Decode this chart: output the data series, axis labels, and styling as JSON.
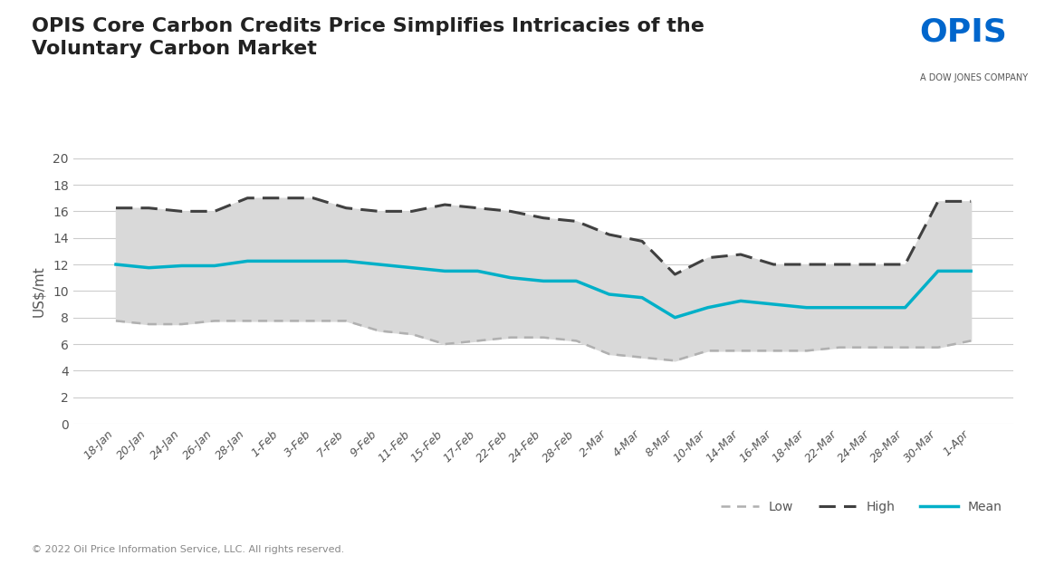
{
  "title": "OPIS Core Carbon Credits Price Simplifies Intricacies of the\nVoluntary Carbon Market",
  "ylabel": "US$/mt",
  "copyright": "© 2022 Oil Price Information Service, LLC. All rights reserved.",
  "xlabels": [
    "18-Jan",
    "20-Jan",
    "24-Jan",
    "26-Jan",
    "28-Jan",
    "1-Feb",
    "3-Feb",
    "7-Feb",
    "9-Feb",
    "11-Feb",
    "15-Feb",
    "17-Feb",
    "22-Feb",
    "24-Feb",
    "28-Feb",
    "2-Mar",
    "4-Mar",
    "8-Mar",
    "10-Mar",
    "14-Mar",
    "16-Mar",
    "18-Mar",
    "22-Mar",
    "24-Mar",
    "28-Mar",
    "30-Mar",
    "1-Apr"
  ],
  "low": [
    7.75,
    7.5,
    7.5,
    7.75,
    7.75,
    7.75,
    7.75,
    7.75,
    7.0,
    6.75,
    6.0,
    6.25,
    6.5,
    6.5,
    6.25,
    5.25,
    5.0,
    4.75,
    5.5,
    5.5,
    5.5,
    5.5,
    5.75,
    5.75,
    5.75,
    5.75,
    6.25
  ],
  "high": [
    16.25,
    16.25,
    16.0,
    16.0,
    17.0,
    17.0,
    17.0,
    16.25,
    16.0,
    16.0,
    16.5,
    16.25,
    16.0,
    15.5,
    15.25,
    14.25,
    13.75,
    11.25,
    12.5,
    12.75,
    12.0,
    12.0,
    12.0,
    12.0,
    12.0,
    16.75,
    16.75
  ],
  "mean": [
    12.0,
    11.75,
    11.9,
    11.9,
    12.25,
    12.25,
    12.25,
    12.25,
    12.0,
    11.75,
    11.5,
    11.5,
    11.0,
    10.75,
    10.75,
    9.75,
    9.5,
    8.0,
    8.75,
    9.25,
    9.0,
    8.75,
    8.75,
    8.75,
    8.75,
    11.5,
    11.5
  ],
  "ylim": [
    0,
    20
  ],
  "yticks": [
    0,
    2,
    4,
    6,
    8,
    10,
    12,
    14,
    16,
    18,
    20
  ],
  "fill_color": "#d9d9d9",
  "low_color": "#b0b0b0",
  "high_color": "#404040",
  "mean_color": "#00b0c8",
  "title_fontsize": 16,
  "axis_label_fontsize": 11,
  "tick_fontsize": 9,
  "background_color": "#ffffff"
}
